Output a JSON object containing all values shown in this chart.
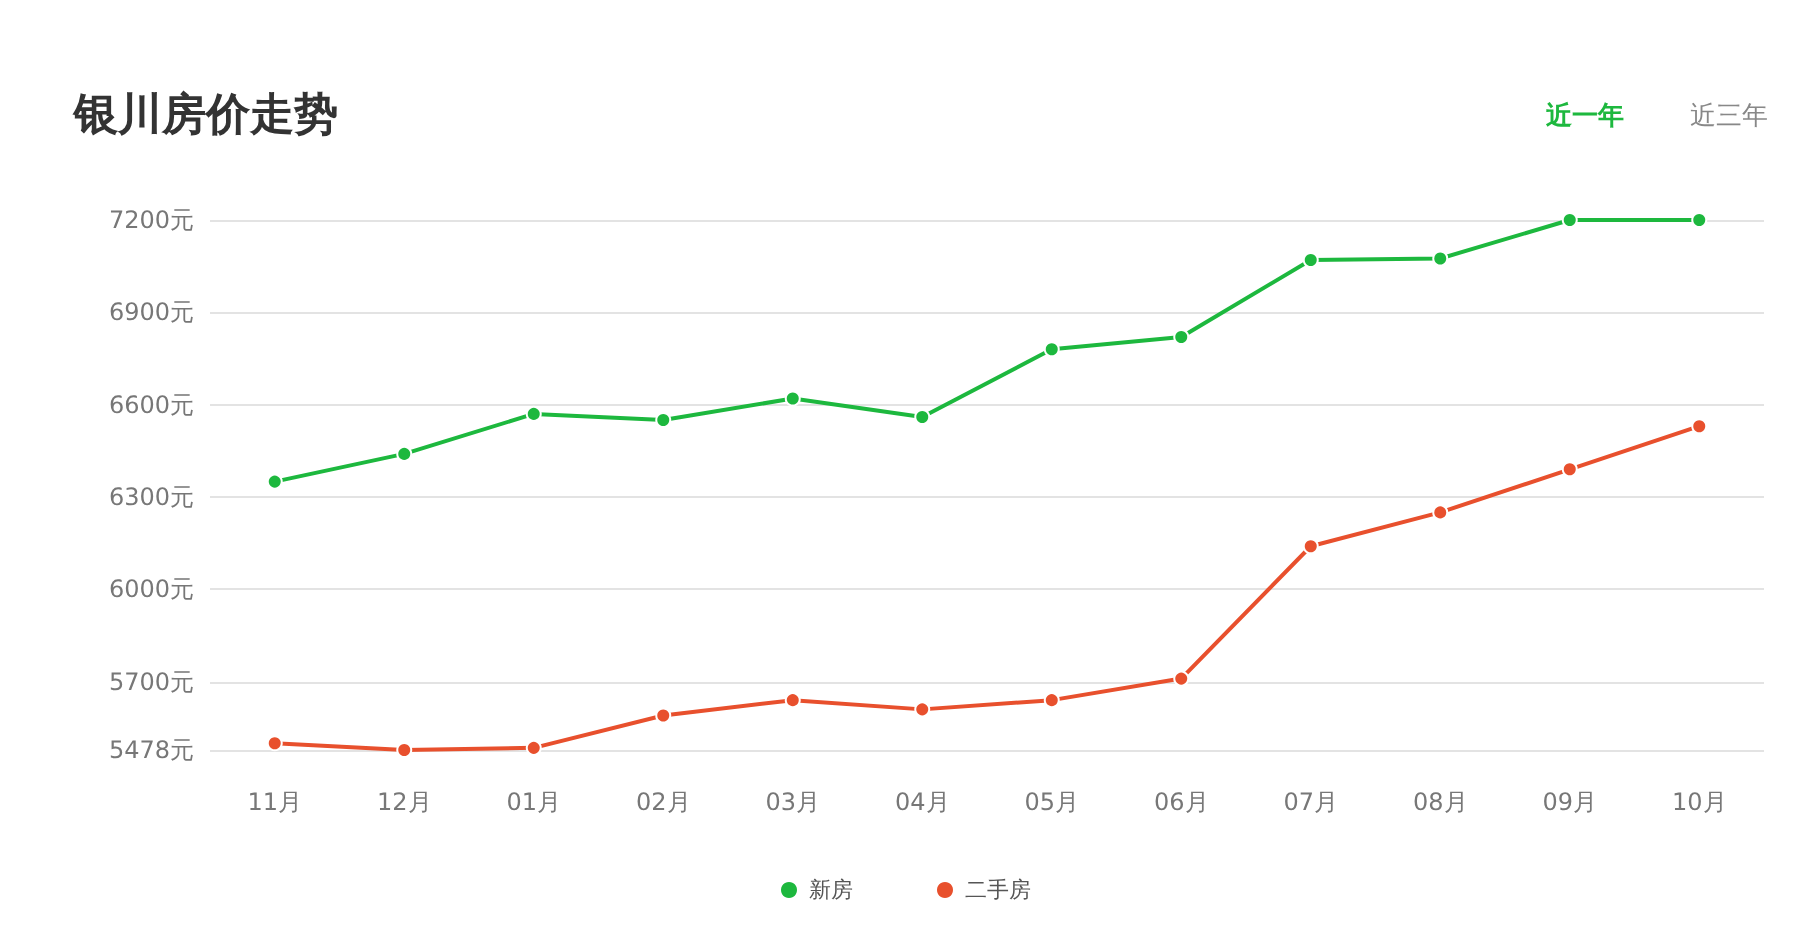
{
  "chart_data": {
    "type": "line",
    "title": "银川房价走势",
    "annotations": [
      "近一年",
      "近三年"
    ],
    "categories": [
      "11月",
      "12月",
      "01月",
      "02月",
      "03月",
      "04月",
      "05月",
      "06月",
      "07月",
      "08月",
      "09月",
      "10月"
    ],
    "series": [
      {
        "name": "新房",
        "color": "#1db83e",
        "values": [
          6350,
          6440,
          6570,
          6550,
          6620,
          6560,
          6780,
          6820,
          7070,
          7075,
          7200,
          7200
        ]
      },
      {
        "name": "二手房",
        "color": "#e8502d",
        "values": [
          5500,
          5478,
          5485,
          5590,
          5640,
          5610,
          5640,
          5710,
          6140,
          6250,
          6390,
          6530
        ]
      }
    ],
    "ylim": [
      5478,
      7200
    ],
    "yticks": [
      {
        "value": 5478,
        "label": "5478元"
      },
      {
        "value": 5700,
        "label": "5700元"
      },
      {
        "value": 6000,
        "label": "6000元"
      },
      {
        "value": 6300,
        "label": "6300元"
      },
      {
        "value": 6600,
        "label": "6600元"
      },
      {
        "value": 6900,
        "label": "6900元"
      },
      {
        "value": 7200,
        "label": "7200元"
      }
    ],
    "grid": "y",
    "legend": "bottom",
    "marker": "circle",
    "line_style": "solid"
  }
}
